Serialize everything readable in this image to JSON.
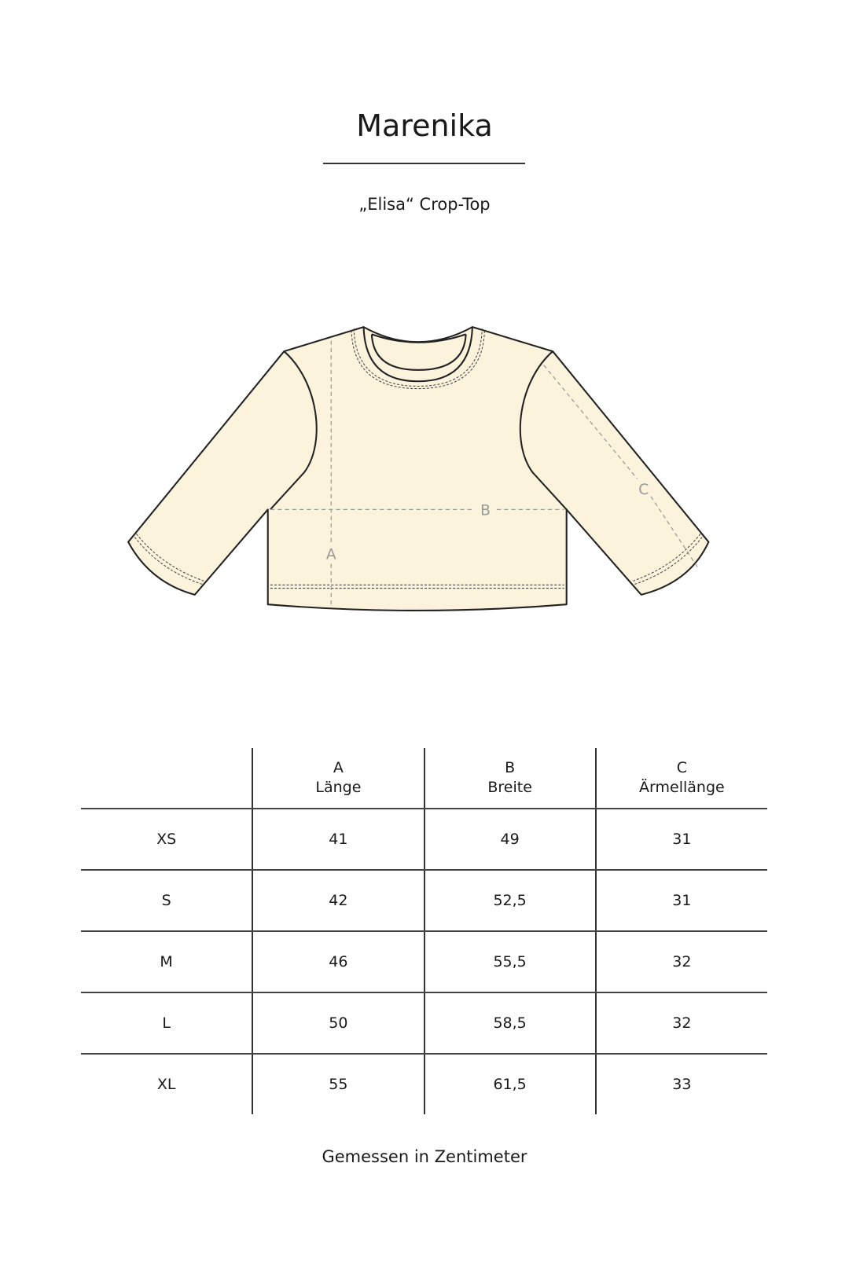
{
  "brand": "Marenika",
  "product": "„Elisa“ Crop-Top",
  "diagram": {
    "labels": {
      "a": "A",
      "b": "B",
      "c": "C"
    },
    "colors": {
      "fill": "#fcf3dc",
      "stroke": "#222222",
      "measure": "#999999"
    }
  },
  "table": {
    "headers": [
      {
        "letter": "",
        "name": ""
      },
      {
        "letter": "A",
        "name": "Länge"
      },
      {
        "letter": "B",
        "name": "Breite"
      },
      {
        "letter": "C",
        "name": "Ärmellänge"
      }
    ],
    "rows": [
      [
        "XS",
        "41",
        "49",
        "31"
      ],
      [
        "S",
        "42",
        "52,5",
        "31"
      ],
      [
        "M",
        "46",
        "55,5",
        "32"
      ],
      [
        "L",
        "50",
        "58,5",
        "32"
      ],
      [
        "XL",
        "55",
        "61,5",
        "33"
      ]
    ]
  },
  "footer": "Gemessen in Zentimeter"
}
